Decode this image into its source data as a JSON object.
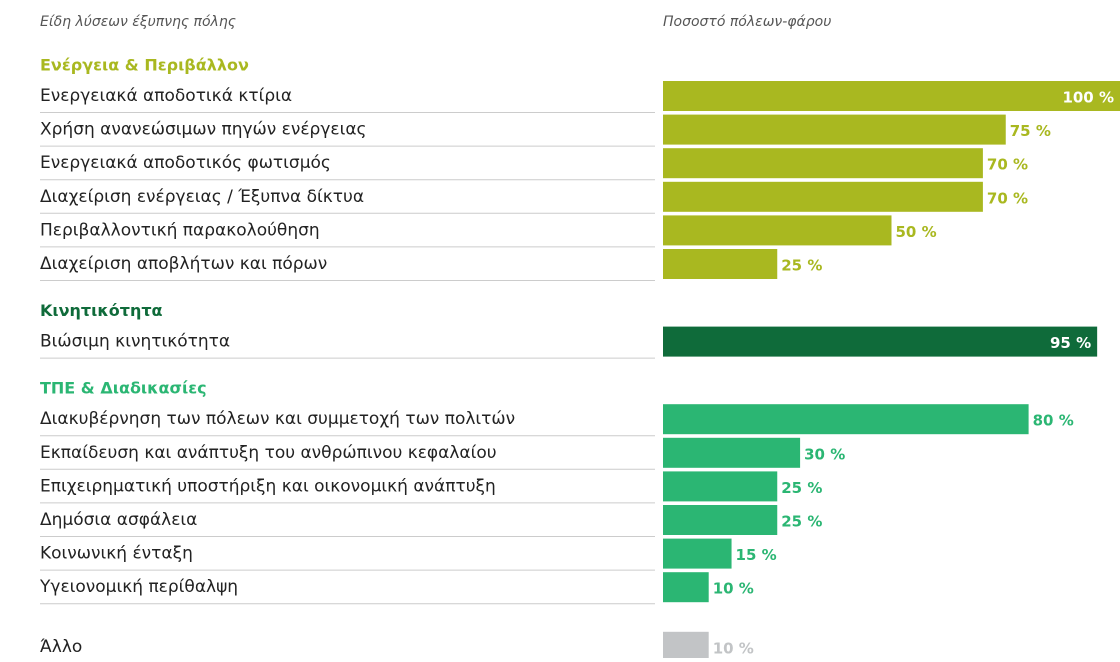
{
  "chart_data": {
    "type": "bar",
    "label_header": "Είδη λύσεων έξυπνης πόλης",
    "value_header": "Ποσοστό πόλεων-φάρου",
    "xlim": [
      0,
      100
    ],
    "groups": [
      {
        "title": "Ενέργεια & Περιβάλλον",
        "color": "#a9b820",
        "categories": [
          "Ενεργειακά αποδοτικά κτίρια",
          "Χρήση ανανεώσιμων πηγών ενέργειας",
          "Ενεργειακά αποδοτικός φωτισμός",
          "Διαχείριση ενέργειας / Έξυπνα δίκτυα",
          "Περιβαλλοντική παρακολούθηση",
          "Διαχείριση αποβλήτων και πόρων"
        ],
        "values": [
          100,
          75,
          70,
          70,
          50,
          25
        ],
        "value_labels": [
          "100 %",
          "75 %",
          "70 %",
          "70 %",
          "50 %",
          "25 %"
        ]
      },
      {
        "title": "Κινητικότητα",
        "color": "#0f6b3a",
        "categories": [
          "Βιώσιμη κινητικότητα"
        ],
        "values": [
          95
        ],
        "value_labels": [
          "95 %"
        ]
      },
      {
        "title": "ΤΠΕ & Διαδικασίες",
        "color": "#2bb673",
        "categories": [
          "Διακυβέρνηση των πόλεων και συμμετοχή των πολιτών",
          "Εκπαίδευση και ανάπτυξη του ανθρώπινου κεφαλαίου",
          "Επιχειρηματική υποστήριξη και οικονομική ανάπτυξη",
          "Δημόσια ασφάλεια",
          "Κοινωνική ένταξη",
          "Υγειονομική περίθαλψη"
        ],
        "values": [
          80,
          30,
          25,
          25,
          15,
          10
        ],
        "value_labels": [
          "80 %",
          "30 %",
          "25 %",
          "25 %",
          "15 %",
          "10 %"
        ]
      },
      {
        "color": "#c2c4c6",
        "categories": [
          "Άλλο"
        ],
        "values": [
          10
        ],
        "value_labels": [
          "10 %"
        ]
      }
    ]
  }
}
